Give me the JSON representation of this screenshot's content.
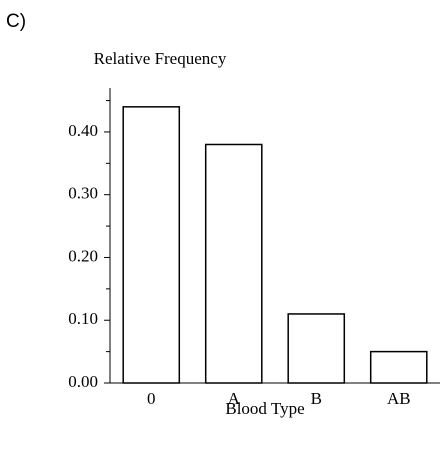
{
  "panel_label": "C)",
  "chart_data": {
    "type": "bar",
    "title": "Relative Frequency",
    "x_label": "Blood Type",
    "categories": [
      "0",
      "A",
      "B",
      "AB"
    ],
    "values": [
      0.44,
      0.38,
      0.11,
      0.05
    ],
    "color": "#ffffff",
    "ylim": [
      0,
      0.47
    ],
    "yticks": [
      {
        "value": 0,
        "label": "0.00"
      },
      {
        "value": 0.1,
        "label": "0.10"
      },
      {
        "value": 0.2,
        "label": "0.20"
      },
      {
        "value": 0.3,
        "label": "0.30"
      },
      {
        "value": 0.4,
        "label": "0.40"
      }
    ],
    "minor_yticks": [
      0.05,
      0.15,
      0.25,
      0.35,
      0.45
    ],
    "grid": false
  }
}
